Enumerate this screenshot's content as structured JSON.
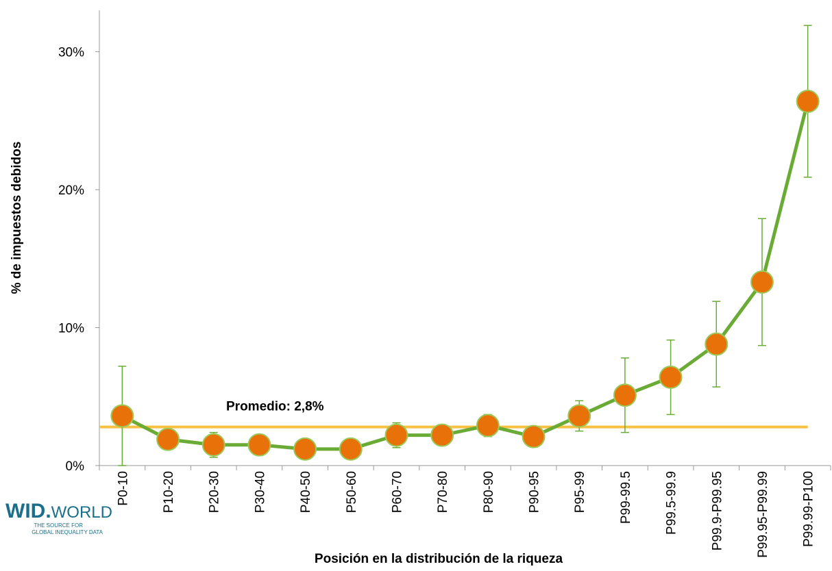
{
  "chart_data": {
    "type": "line",
    "x_axis_label": "Posición en la distribución de la riqueza",
    "y_axis_label": "% de impuestos debidos",
    "categories": [
      "P0-10",
      "P10-20",
      "P20-30",
      "P30-40",
      "P40-50",
      "P50-60",
      "P60-70",
      "P70-80",
      "P80-90",
      "P90-95",
      "P95-99",
      "P99-99.5",
      "P99.5-99.9",
      "P99.9-P99.95",
      "P99.95-P99.99",
      "P99.99-P100"
    ],
    "values": [
      3.6,
      1.9,
      1.5,
      1.5,
      1.2,
      1.2,
      2.2,
      2.2,
      2.9,
      2.1,
      3.6,
      5.1,
      6.4,
      8.8,
      13.3,
      26.4
    ],
    "errors": [
      3.6,
      0.7,
      0.9,
      0.2,
      0.1,
      0.1,
      0.9,
      0.4,
      0.8,
      0.3,
      1.1,
      2.7,
      2.7,
      3.1,
      4.6,
      5.5
    ],
    "line_color": "#6aab35",
    "marker_color": "#e8710a",
    "average": {
      "value": 2.8,
      "label": "Promedio: 2,8%",
      "color": "#f7c244"
    },
    "ylim": [
      0,
      33
    ],
    "yticks": [
      {
        "value": 0,
        "label": "0%"
      },
      {
        "value": 10,
        "label": "10%"
      },
      {
        "value": 20,
        "label": "20%"
      },
      {
        "value": 30,
        "label": "30%"
      }
    ],
    "logo": {
      "name": "WID.",
      "suffix": "WORLD",
      "line1": "THE SOURCE FOR",
      "line2": "GLOBAL INEQUALITY DATA"
    }
  }
}
